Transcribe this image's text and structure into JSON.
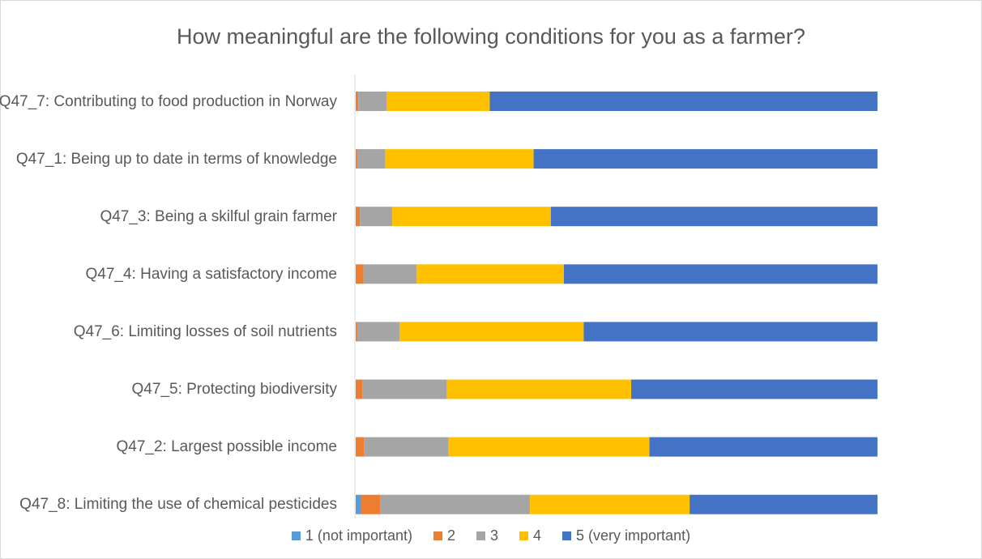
{
  "chart_data": {
    "type": "bar",
    "orientation": "horizontal",
    "stacking": "percent",
    "title": "How meaningful are the following conditions for you as a farmer?",
    "categories": [
      "Q47_7: Contributing to food production in Norway",
      "Q47_1: Being up to date in terms of knowledge",
      "Q47_3: Being a skilful grain farmer",
      "Q47_4: Having a satisfactory income",
      "Q47_6: Limiting losses of soil nutrients",
      "Q47_5: Protecting biodiversity",
      "Q47_2: Largest possible income",
      "Q47_8: Limiting the use of chemical pesticides"
    ],
    "series": [
      {
        "name": "1 (not important)",
        "color": "#5B9BD5",
        "values": [
          0,
          0,
          0,
          0,
          0,
          0,
          0,
          1
        ]
      },
      {
        "name": "2",
        "color": "#ED7D31",
        "values": [
          0.5,
          0.3,
          0.8,
          1.5,
          0.3,
          1.3,
          1.6,
          3.7
        ]
      },
      {
        "name": "3",
        "color": "#A5A5A5",
        "values": [
          5.4,
          5.4,
          6.2,
          10.2,
          8.1,
          16.2,
          16.2,
          28.7
        ]
      },
      {
        "name": "4",
        "color": "#FFC000",
        "values": [
          19.8,
          28.4,
          30.4,
          28.2,
          35.3,
          35.3,
          38.5,
          30.6
        ]
      },
      {
        "name": "5 (very important)",
        "color": "#4472C4",
        "values": [
          74.3,
          65.9,
          62.6,
          60.1,
          56.3,
          47.2,
          43.7,
          36.0
        ]
      }
    ],
    "legend_position": "bottom",
    "grid": false
  }
}
